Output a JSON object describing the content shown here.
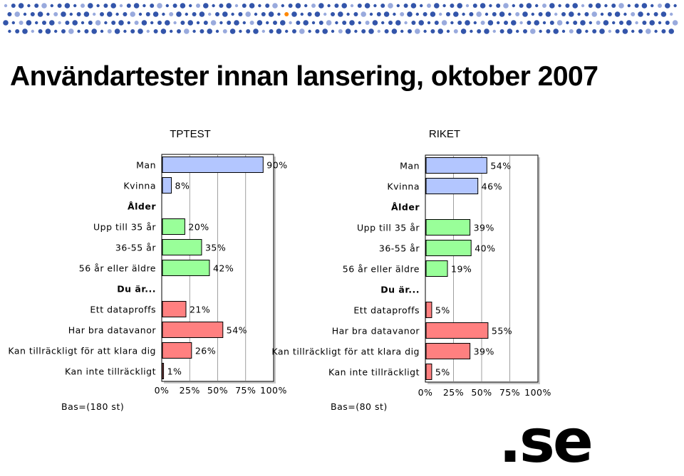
{
  "title": "Användartester innan lansering, oktober 2007",
  "logo_text": ".se",
  "colors": {
    "gender": "#b3c6ff",
    "age": "#99ff99",
    "skill": "#ff8080",
    "dot_primary": "#3355aa",
    "dot_secondary": "#99aadd",
    "dot_accent": "#ff8800"
  },
  "chart_data": [
    {
      "type": "bar",
      "orientation": "horizontal",
      "title": "TPTEST",
      "base_label": "Bas=(180 st)",
      "xlim": [
        0,
        100
      ],
      "ticks": [
        "0%",
        "25%",
        "50%",
        "75%",
        "100%"
      ],
      "rows": [
        {
          "label": "Man",
          "value": 90,
          "value_label": "90%",
          "group": "gender",
          "heading": false
        },
        {
          "label": "Kvinna",
          "value": 8,
          "value_label": "8%",
          "group": "gender",
          "heading": false
        },
        {
          "label": "Ålder",
          "heading": true
        },
        {
          "label": "Upp till 35 år",
          "value": 20,
          "value_label": "20%",
          "group": "age",
          "heading": false
        },
        {
          "label": "36-55 år",
          "value": 35,
          "value_label": "35%",
          "group": "age",
          "heading": false
        },
        {
          "label": "56 år eller äldre",
          "value": 42,
          "value_label": "42%",
          "group": "age",
          "heading": false
        },
        {
          "label": "Du är...",
          "heading": true
        },
        {
          "label": "Ett dataproffs",
          "value": 21,
          "value_label": "21%",
          "group": "skill",
          "heading": false
        },
        {
          "label": "Har bra datavanor",
          "value": 54,
          "value_label": "54%",
          "group": "skill",
          "heading": false
        },
        {
          "label": "Kan tillräckligt för att klara dig",
          "value": 26,
          "value_label": "26%",
          "group": "skill",
          "heading": false
        },
        {
          "label": "Kan inte tillräckligt",
          "value": 1,
          "value_label": "1%",
          "group": "skill",
          "heading": false
        }
      ]
    },
    {
      "type": "bar",
      "orientation": "horizontal",
      "title": "RIKET",
      "base_label": "Bas=(80 st)",
      "xlim": [
        0,
        100
      ],
      "ticks": [
        "0%",
        "25%",
        "50%",
        "75%",
        "100%"
      ],
      "rows": [
        {
          "label": "Man",
          "value": 54,
          "value_label": "54%",
          "group": "gender",
          "heading": false
        },
        {
          "label": "Kvinna",
          "value": 46,
          "value_label": "46%",
          "group": "gender",
          "heading": false
        },
        {
          "label": "Ålder",
          "heading": true
        },
        {
          "label": "Upp till 35 år",
          "value": 39,
          "value_label": "39%",
          "group": "age",
          "heading": false
        },
        {
          "label": "36-55 år",
          "value": 40,
          "value_label": "40%",
          "group": "age",
          "heading": false
        },
        {
          "label": "56 år eller äldre",
          "value": 19,
          "value_label": "19%",
          "group": "age",
          "heading": false
        },
        {
          "label": "Du är...",
          "heading": true
        },
        {
          "label": "Ett dataproffs",
          "value": 5,
          "value_label": "5%",
          "group": "skill",
          "heading": false
        },
        {
          "label": "Har bra datavanor",
          "value": 55,
          "value_label": "55%",
          "group": "skill",
          "heading": false
        },
        {
          "label": "Kan tillräckligt för att klara dig",
          "value": 39,
          "value_label": "39%",
          "group": "skill",
          "heading": false
        },
        {
          "label": "Kan inte tillräckligt",
          "value": 5,
          "value_label": "5%",
          "group": "skill",
          "heading": false
        }
      ]
    }
  ]
}
